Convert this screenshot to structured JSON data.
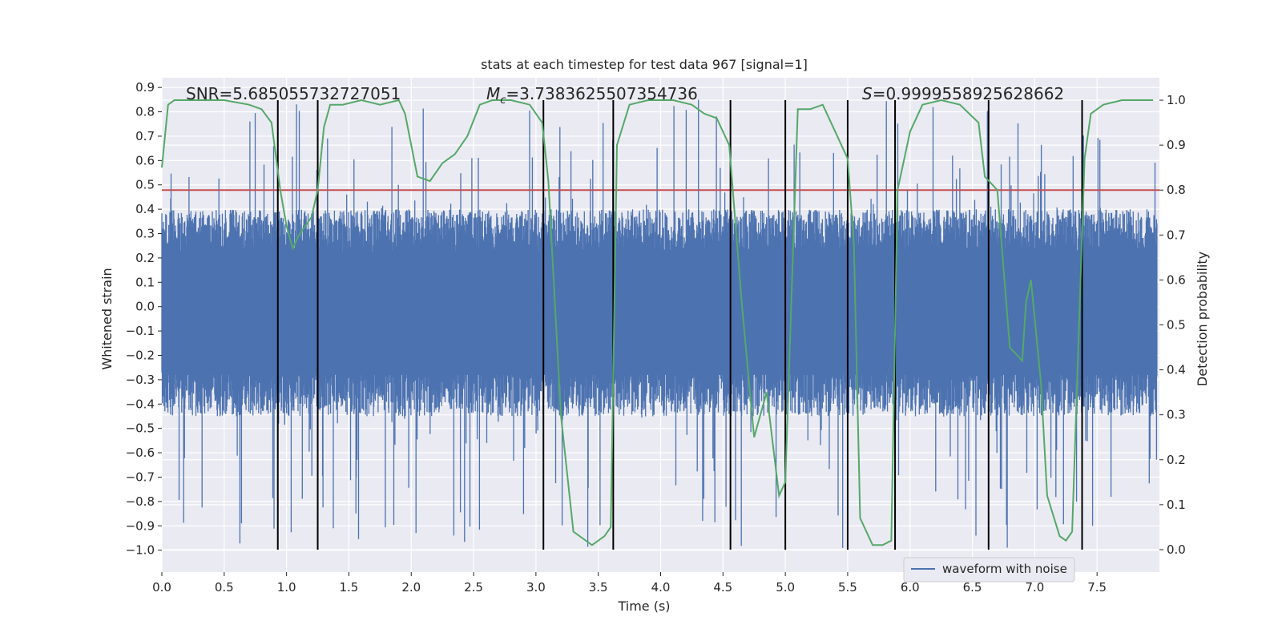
{
  "chart_data": {
    "type": "line",
    "title": "stats at each timestep for test data 967 [signal=1]",
    "xlabel": "Time (s)",
    "ylabel_left": "Whitened strain",
    "ylabel_right": "Detection probability",
    "xlim": [
      0.0,
      8.0
    ],
    "ylim_left": [
      -1.09,
      0.94
    ],
    "ylim_right": [
      -0.05,
      1.05
    ],
    "x_ticks": [
      "0.0",
      "0.5",
      "1.0",
      "1.5",
      "2.0",
      "2.5",
      "3.0",
      "3.5",
      "4.0",
      "4.5",
      "5.0",
      "5.5",
      "6.0",
      "6.5",
      "7.0",
      "7.5"
    ],
    "y_ticks_left": [
      "0.9",
      "0.8",
      "0.7",
      "0.6",
      "0.5",
      "0.4",
      "0.3",
      "0.2",
      "0.1",
      "0.0",
      "−0.1",
      "−0.2",
      "−0.3",
      "−0.4",
      "−0.5",
      "−0.6",
      "−0.7",
      "−0.8",
      "−0.9",
      "−1.0"
    ],
    "y_ticks_right": [
      "1.0",
      "0.9",
      "0.8",
      "0.7",
      "0.6",
      "0.5",
      "0.4",
      "0.3",
      "0.2",
      "0.1",
      "0.0"
    ],
    "annotations": {
      "snr": "SNR=5.685055732727051",
      "mc_symbol": "M",
      "mc_sub": "c",
      "mc_value": "=3.7383625507354736",
      "s_symbol": "S",
      "s_value": "=0.9999558925628662"
    },
    "legend": {
      "entries": [
        "waveform with noise"
      ],
      "position": "lower-right"
    },
    "threshold_right": 0.8,
    "event_lines_x": [
      0.93,
      1.25,
      3.06,
      3.62,
      4.56,
      5.0,
      5.5,
      5.88,
      6.63,
      7.38
    ],
    "waveform_envelope": {
      "typical_upper": 0.4,
      "typical_lower": -0.45,
      "max": 0.85,
      "min": -1.0
    },
    "detection_probability": {
      "series_name": "",
      "x": [
        0.0,
        0.05,
        0.1,
        0.2,
        0.3,
        0.5,
        0.7,
        0.8,
        0.88,
        0.95,
        1.0,
        1.05,
        1.1,
        1.2,
        1.25,
        1.3,
        1.35,
        1.45,
        1.6,
        1.75,
        1.9,
        1.95,
        2.05,
        2.15,
        2.25,
        2.35,
        2.45,
        2.55,
        2.65,
        2.8,
        2.95,
        3.05,
        3.1,
        3.2,
        3.3,
        3.45,
        3.55,
        3.6,
        3.65,
        3.75,
        3.9,
        4.1,
        4.25,
        4.35,
        4.45,
        4.55,
        4.65,
        4.75,
        4.85,
        4.95,
        5.0,
        5.1,
        5.2,
        5.3,
        5.4,
        5.5,
        5.55,
        5.6,
        5.7,
        5.78,
        5.85,
        5.9,
        6.0,
        6.1,
        6.25,
        6.4,
        6.55,
        6.6,
        6.7,
        6.8,
        6.9,
        6.93,
        6.97,
        7.05,
        7.1,
        7.2,
        7.25,
        7.3,
        7.4,
        7.45,
        7.55,
        7.7,
        7.95
      ],
      "y": [
        0.85,
        0.99,
        1.0,
        1.0,
        1.0,
        1.0,
        0.99,
        0.98,
        0.95,
        0.8,
        0.72,
        0.67,
        0.7,
        0.74,
        0.8,
        0.94,
        0.99,
        0.99,
        1.0,
        0.99,
        1.0,
        0.97,
        0.83,
        0.82,
        0.86,
        0.88,
        0.92,
        0.99,
        1.0,
        1.0,
        0.99,
        0.95,
        0.82,
        0.3,
        0.04,
        0.01,
        0.03,
        0.05,
        0.9,
        0.99,
        1.0,
        1.0,
        0.99,
        0.97,
        0.96,
        0.9,
        0.55,
        0.25,
        0.35,
        0.12,
        0.15,
        0.98,
        0.98,
        0.99,
        0.93,
        0.87,
        0.68,
        0.07,
        0.01,
        0.01,
        0.02,
        0.8,
        0.93,
        0.99,
        1.0,
        0.99,
        0.95,
        0.83,
        0.8,
        0.45,
        0.42,
        0.55,
        0.6,
        0.37,
        0.12,
        0.03,
        0.02,
        0.04,
        0.87,
        0.97,
        0.99,
        1.0,
        1.0
      ],
      "color": "#55a868"
    },
    "colors": {
      "waveform": "#4c72b0",
      "probability": "#55a868",
      "threshold": "#c44e52",
      "events": "#000000",
      "plot_bg": "#eaeaf2",
      "grid": "#ffffff"
    }
  }
}
